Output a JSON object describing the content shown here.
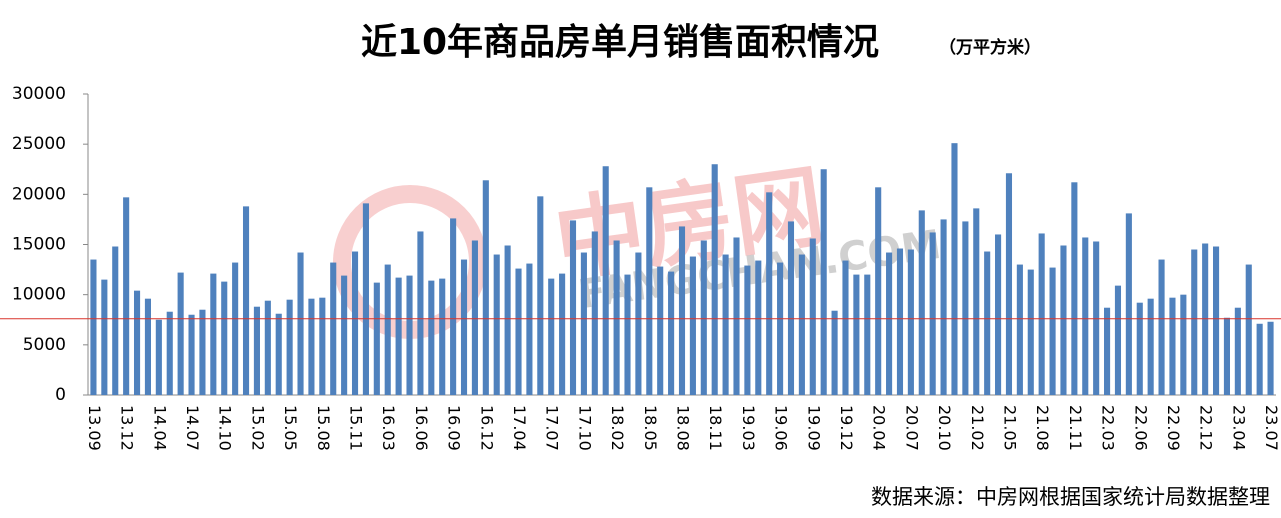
{
  "chart_data": {
    "type": "bar",
    "title": "近10年商品房单月销售面积情况",
    "subtitle": "（万平方米）",
    "source": "数据来源：中房网根据国家统计局数据整理",
    "watermark": "FANGCHAN.COM",
    "watermark_logo": "中房网",
    "color": "#4f81bd",
    "reference_value": 7600,
    "reference_color": "#d9342b",
    "categories": [
      "13.09",
      null,
      null,
      "13.12",
      null,
      null,
      "14.04",
      null,
      null,
      "14.07",
      null,
      null,
      "14.10",
      null,
      null,
      "15.02",
      null,
      null,
      "15.05",
      null,
      null,
      "15.08",
      null,
      null,
      "15.11",
      null,
      null,
      "16.03",
      null,
      null,
      "16.06",
      null,
      null,
      "16.09",
      null,
      null,
      "16.12",
      null,
      null,
      "17.04",
      null,
      null,
      "17.07",
      null,
      null,
      "17.10",
      null,
      null,
      "18.02",
      null,
      null,
      "18.05",
      null,
      null,
      "18.08",
      null,
      null,
      "18.11",
      null,
      null,
      "19.03",
      null,
      null,
      "19.06",
      null,
      null,
      "19.09",
      null,
      null,
      "19.12",
      null,
      null,
      "20.04",
      null,
      null,
      "20.07",
      null,
      null,
      "20.10",
      null,
      null,
      "21.02",
      null,
      null,
      "21.05",
      null,
      null,
      "21.08",
      null,
      null,
      "21.11",
      null,
      null,
      "22.03",
      null,
      null,
      "22.06",
      null,
      null,
      "22.09",
      null,
      null,
      "22.12",
      null,
      null,
      "23.04",
      null,
      null,
      "23.07"
    ],
    "values": [
      13500,
      11500,
      14800,
      19700,
      10400,
      9600,
      7500,
      8300,
      12200,
      8000,
      8500,
      12100,
      11300,
      13200,
      18800,
      8800,
      9400,
      8100,
      9500,
      14200,
      9600,
      9700,
      13200,
      11900,
      14300,
      19100,
      11200,
      13000,
      11700,
      11900,
      16300,
      11400,
      11600,
      17600,
      13500,
      15400,
      21400,
      14000,
      14900,
      12600,
      13100,
      19800,
      11600,
      12100,
      17400,
      14200,
      16300,
      22800,
      15400,
      12000,
      14200,
      20700,
      12800,
      12300,
      16800,
      13800,
      15400,
      23000,
      14000,
      15700,
      12900,
      13400,
      20200,
      13200,
      17300,
      14000,
      15600,
      22500,
      8400,
      13400,
      12000,
      12000,
      20700,
      14200,
      14600,
      14500,
      18400,
      16200,
      17500,
      25100,
      17300,
      18600,
      14300,
      16000,
      22100,
      13000,
      12500,
      16100,
      12700,
      14900,
      21200,
      15700,
      15300,
      8700,
      10900,
      18100,
      9200,
      9600,
      13500,
      9700,
      10000,
      14500,
      15100,
      14800,
      7700,
      8700,
      13000,
      7100,
      7300
    ],
    "ylim": [
      0,
      30000
    ],
    "yticks": [
      0,
      5000,
      10000,
      15000,
      20000,
      25000,
      30000
    ],
    "grid": false
  }
}
